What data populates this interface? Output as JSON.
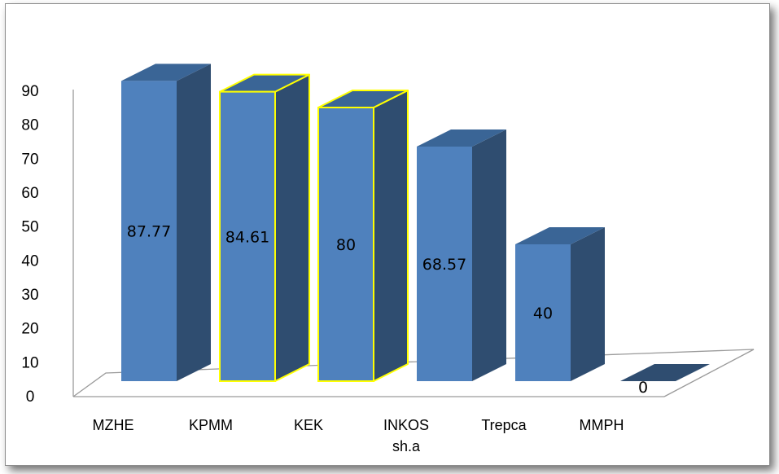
{
  "chart_data": {
    "type": "bar",
    "style": "3d-column",
    "categories": [
      "MZHE",
      "KPMM",
      "KEK",
      "INKOS sh.a",
      "Trepca",
      "MMPH"
    ],
    "category_lines": [
      [
        "MZHE"
      ],
      [
        "KPMM"
      ],
      [
        "KEK"
      ],
      [
        "INKOS",
        "sh.a"
      ],
      [
        "Trepca"
      ],
      [
        "MMPH"
      ]
    ],
    "values": [
      87.77,
      84.61,
      80,
      68.57,
      40,
      0
    ],
    "value_labels": [
      "87.77",
      "84.61",
      "80",
      "68.57",
      "40",
      "0"
    ],
    "highlighted": [
      false,
      true,
      true,
      false,
      false,
      false
    ],
    "yticks": [
      "0",
      "10",
      "20",
      "30",
      "40",
      "50",
      "60",
      "70",
      "80",
      "90"
    ],
    "ylim": [
      0,
      90
    ],
    "grid": false,
    "legend": false,
    "colors": {
      "front": "#4f81bd",
      "side": "#2f4d70",
      "top": "#3a6596",
      "highlight_outline": "#ffff00",
      "axis": "#9a9a9a"
    }
  }
}
